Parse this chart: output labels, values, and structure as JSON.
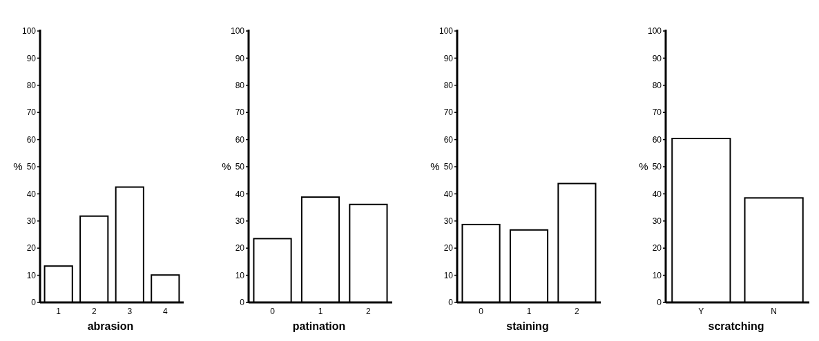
{
  "chart_data": [
    {
      "type": "bar",
      "xlabel": "abrasion",
      "ylabel": "%",
      "categories": [
        "1",
        "2",
        "3",
        "4"
      ],
      "values": [
        13.4,
        31.8,
        42.5,
        10.1
      ],
      "color": "#ffffff",
      "ylim": [
        0,
        100
      ],
      "yticks": [
        0,
        10,
        20,
        30,
        40,
        50,
        60,
        70,
        80,
        90,
        100
      ],
      "grid": false
    },
    {
      "type": "bar",
      "xlabel": "patination",
      "ylabel": "%",
      "categories": [
        "0",
        "1",
        "2"
      ],
      "values": [
        23.5,
        38.8,
        36.1
      ],
      "color": "#ffffff",
      "ylim": [
        0,
        100
      ],
      "yticks": [
        0,
        10,
        20,
        30,
        40,
        50,
        60,
        70,
        80,
        90,
        100
      ],
      "grid": false
    },
    {
      "type": "bar",
      "xlabel": "staining",
      "ylabel": "%",
      "categories": [
        "0",
        "1",
        "2"
      ],
      "values": [
        28.7,
        26.7,
        43.8
      ],
      "color": "#ffffff",
      "ylim": [
        0,
        100
      ],
      "yticks": [
        0,
        10,
        20,
        30,
        40,
        50,
        60,
        70,
        80,
        90,
        100
      ],
      "grid": false
    },
    {
      "type": "bar",
      "xlabel": "scratching",
      "ylabel": "%",
      "categories": [
        "Y",
        "N"
      ],
      "values": [
        60.4,
        38.5
      ],
      "color": "#ffffff",
      "ylim": [
        0,
        100
      ],
      "yticks": [
        0,
        10,
        20,
        30,
        40,
        50,
        60,
        70,
        80,
        90,
        100
      ],
      "grid": false
    }
  ]
}
